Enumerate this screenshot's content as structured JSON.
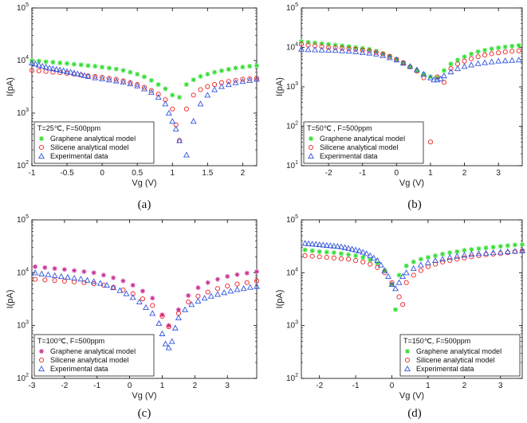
{
  "chart_data": [
    {
      "type": "scatter",
      "panel": "(a)",
      "ylog": true,
      "xlim": [
        -1,
        2.2
      ],
      "ylim": [
        100,
        100000
      ],
      "xticks": [
        -1,
        -0.5,
        0,
        0.5,
        1,
        1.5,
        2
      ],
      "xtick_labels": [
        "-1",
        "-0.5",
        "0",
        "0.5",
        "1",
        "1.5",
        "2"
      ],
      "yticks": [
        100,
        1000,
        10000,
        100000
      ],
      "xlabel": "Vg (V)",
      "ylabel": "I(pA)",
      "legend_title": "T=25℃, F=500ppm",
      "legend_position": "bottom-left",
      "series": [
        {
          "name": "Graphene analytical model",
          "marker": "star",
          "color": "#33dd33",
          "x": [
            -1.0,
            -0.9,
            -0.8,
            -0.7,
            -0.6,
            -0.5,
            -0.4,
            -0.3,
            -0.2,
            -0.1,
            0.0,
            0.1,
            0.2,
            0.3,
            0.4,
            0.5,
            0.6,
            0.7,
            0.8,
            0.9,
            1.0,
            1.1,
            1.2,
            1.3,
            1.4,
            1.5,
            1.6,
            1.7,
            1.8,
            1.9,
            2.0,
            2.1,
            2.2
          ],
          "y": [
            10000,
            9800,
            9500,
            9300,
            9000,
            8800,
            8500,
            8300,
            8000,
            7800,
            7500,
            7200,
            6900,
            6500,
            6000,
            5500,
            4900,
            4200,
            3500,
            2900,
            2200,
            2000,
            3500,
            4300,
            5000,
            5500,
            6000,
            6400,
            6800,
            7200,
            7500,
            7800,
            8000
          ]
        },
        {
          "name": "Silicene analytical model",
          "marker": "circle",
          "color": "#ee2222",
          "x": [
            -1.0,
            -0.9,
            -0.8,
            -0.7,
            -0.6,
            -0.5,
            -0.4,
            -0.3,
            -0.2,
            -0.1,
            0.0,
            0.1,
            0.2,
            0.3,
            0.4,
            0.5,
            0.6,
            0.7,
            0.8,
            0.9,
            1.0,
            1.05,
            1.1,
            1.2,
            1.3,
            1.4,
            1.5,
            1.6,
            1.7,
            1.8,
            1.9,
            2.0,
            2.1,
            2.2
          ],
          "y": [
            6500,
            6400,
            6200,
            6000,
            5900,
            5700,
            5500,
            5300,
            5100,
            5000,
            4800,
            4600,
            4400,
            4100,
            3800,
            3500,
            3100,
            2700,
            2300,
            1800,
            1200,
            600,
            300,
            1200,
            2200,
            2800,
            3200,
            3500,
            3800,
            4000,
            4200,
            4400,
            4500,
            4600
          ]
        },
        {
          "name": "Experimental data",
          "marker": "triangle",
          "color": "#3355dd",
          "x": [
            -1.0,
            -0.95,
            -0.9,
            -0.85,
            -0.8,
            -0.75,
            -0.7,
            -0.65,
            -0.6,
            -0.55,
            -0.5,
            -0.45,
            -0.4,
            -0.35,
            -0.3,
            -0.25,
            -0.2,
            -0.1,
            0.0,
            0.1,
            0.2,
            0.3,
            0.4,
            0.5,
            0.6,
            0.7,
            0.8,
            0.9,
            0.95,
            1.0,
            1.05,
            1.1,
            1.2,
            1.3,
            1.4,
            1.5,
            1.6,
            1.7,
            1.8,
            1.9,
            2.0,
            2.1,
            2.2
          ],
          "y": [
            9000,
            8600,
            8200,
            7800,
            7500,
            7200,
            7000,
            6800,
            6600,
            6400,
            6200,
            6000,
            5800,
            5600,
            5400,
            5200,
            5000,
            4700,
            4500,
            4300,
            4100,
            3900,
            3600,
            3300,
            2900,
            2500,
            2000,
            1500,
            1000,
            700,
            500,
            300,
            160,
            700,
            1500,
            2200,
            2800,
            3200,
            3500,
            3800,
            4000,
            4200,
            4400
          ]
        }
      ]
    },
    {
      "type": "scatter",
      "panel": "(b)",
      "ylog": true,
      "xlim": [
        -2.8,
        3.7
      ],
      "ylim": [
        10,
        100000
      ],
      "xticks": [
        -2,
        -1,
        0,
        1,
        2,
        3
      ],
      "xtick_labels": [
        "-2",
        "-1",
        "0",
        "1",
        "2",
        "3"
      ],
      "yticks": [
        10,
        100,
        1000,
        10000,
        100000
      ],
      "xlabel": "Vg (V)",
      "ylabel": "I(pA)",
      "legend_title": "T=50℃ , F=500ppm",
      "legend_position": "bottom-left",
      "series": [
        {
          "name": "Graphene analytical model",
          "marker": "star",
          "color": "#33dd33",
          "x": [
            -2.8,
            -2.6,
            -2.4,
            -2.2,
            -2.0,
            -1.8,
            -1.6,
            -1.4,
            -1.2,
            -1.0,
            -0.8,
            -0.6,
            -0.4,
            -0.2,
            0.0,
            0.2,
            0.4,
            0.6,
            0.8,
            1.0,
            1.2,
            1.4,
            1.6,
            1.8,
            2.0,
            2.2,
            2.4,
            2.6,
            2.8,
            3.0,
            3.2,
            3.4,
            3.6
          ],
          "y": [
            14000,
            13500,
            13000,
            12500,
            12000,
            11500,
            11000,
            10500,
            10000,
            9500,
            9000,
            8000,
            7000,
            6000,
            5000,
            4000,
            3200,
            2600,
            2100,
            1800,
            1700,
            2600,
            3800,
            4800,
            5800,
            6800,
            7800,
            8500,
            9200,
            9800,
            10300,
            10800,
            11200
          ]
        },
        {
          "name": "Silicene analytical model",
          "marker": "circle",
          "color": "#ee2222",
          "x": [
            -2.8,
            -2.6,
            -2.4,
            -2.2,
            -2.0,
            -1.8,
            -1.6,
            -1.4,
            -1.2,
            -1.0,
            -0.8,
            -0.6,
            -0.4,
            -0.2,
            0.0,
            0.2,
            0.4,
            0.6,
            0.8,
            1.0,
            1.2,
            1.4,
            1.6,
            1.8,
            2.0,
            2.2,
            2.4,
            2.6,
            2.8,
            3.0,
            3.2,
            3.4,
            3.6
          ],
          "y": [
            12000,
            11500,
            11000,
            10500,
            10000,
            9800,
            9500,
            9200,
            9000,
            8600,
            8200,
            7500,
            6800,
            5900,
            5000,
            4100,
            3200,
            2500,
            1700,
            40,
            1800,
            1300,
            2900,
            3800,
            4500,
            5200,
            5800,
            6400,
            6900,
            7300,
            7700,
            8000,
            8200
          ]
        },
        {
          "name": "Experimental data",
          "marker": "triangle",
          "color": "#3355dd",
          "x": [
            -2.8,
            -2.6,
            -2.4,
            -2.2,
            -2.0,
            -1.8,
            -1.6,
            -1.4,
            -1.2,
            -1.0,
            -0.8,
            -0.6,
            -0.4,
            -0.2,
            0.0,
            0.2,
            0.4,
            0.6,
            0.8,
            1.0,
            1.1,
            1.2,
            1.3,
            1.4,
            1.6,
            1.8,
            2.0,
            2.2,
            2.4,
            2.6,
            2.8,
            3.0,
            3.2,
            3.4,
            3.6
          ],
          "y": [
            9000,
            8800,
            8700,
            8600,
            8500,
            8400,
            8200,
            8000,
            7800,
            7500,
            7200,
            6800,
            6200,
            5500,
            4800,
            4000,
            3300,
            2700,
            2100,
            1700,
            1500,
            1500,
            1600,
            1900,
            2400,
            2900,
            3300,
            3600,
            3900,
            4100,
            4300,
            4500,
            4600,
            4700,
            4800
          ]
        }
      ]
    },
    {
      "type": "scatter",
      "panel": "(c)",
      "ylog": true,
      "xlim": [
        -3,
        3.9
      ],
      "ylim": [
        100,
        100000
      ],
      "xticks": [
        -3,
        -2,
        -1,
        0,
        1,
        2,
        3
      ],
      "xtick_labels": [
        "-3",
        "-2",
        "-1",
        "0",
        "1",
        "2",
        "3"
      ],
      "yticks": [
        100,
        1000,
        10000,
        100000
      ],
      "xlabel": "Vg (V)",
      "ylabel": "I(pA)",
      "legend_title": "T=100℃, F=500ppm",
      "legend_position": "bottom-left",
      "series": [
        {
          "name": "Graphene analytical model",
          "marker": "plus",
          "color": "#cc3399",
          "x": [
            -2.9,
            -2.6,
            -2.3,
            -2.0,
            -1.7,
            -1.4,
            -1.1,
            -0.8,
            -0.5,
            -0.2,
            0.1,
            0.4,
            0.7,
            1.0,
            1.2,
            1.5,
            1.8,
            2.1,
            2.4,
            2.7,
            3.0,
            3.3,
            3.6,
            3.9
          ],
          "y": [
            13000,
            12500,
            12000,
            11500,
            11000,
            10500,
            10000,
            9000,
            8000,
            7000,
            5800,
            4500,
            3300,
            1600,
            1000,
            2000,
            3700,
            5200,
            6500,
            7500,
            8500,
            9200,
            9800,
            10500
          ]
        },
        {
          "name": "Silicene analytical model",
          "marker": "circle",
          "color": "#ee2222",
          "x": [
            -2.9,
            -2.6,
            -2.3,
            -2.0,
            -1.7,
            -1.4,
            -1.1,
            -0.8,
            -0.5,
            -0.2,
            0.1,
            0.4,
            0.7,
            1.0,
            1.2,
            1.5,
            1.8,
            2.1,
            2.4,
            2.7,
            3.0,
            3.3,
            3.6,
            3.9
          ],
          "y": [
            7500,
            7300,
            7100,
            6900,
            6700,
            6500,
            6200,
            5800,
            5300,
            4700,
            4000,
            3200,
            2400,
            1500,
            950,
            1700,
            2800,
            3600,
            4300,
            5000,
            5600,
            6100,
            6500,
            7000
          ]
        },
        {
          "name": "Experimental data",
          "marker": "triangle",
          "color": "#3355dd",
          "x": [
            -2.9,
            -2.7,
            -2.5,
            -2.3,
            -2.1,
            -1.9,
            -1.7,
            -1.5,
            -1.3,
            -1.1,
            -0.9,
            -0.7,
            -0.5,
            -0.3,
            -0.1,
            0.1,
            0.3,
            0.5,
            0.7,
            0.9,
            1.0,
            1.1,
            1.2,
            1.3,
            1.4,
            1.5,
            1.7,
            1.9,
            2.1,
            2.3,
            2.5,
            2.7,
            2.9,
            3.1,
            3.3,
            3.5,
            3.7,
            3.9
          ],
          "y": [
            10000,
            9500,
            9200,
            8800,
            8500,
            8200,
            7900,
            7600,
            7200,
            6800,
            6300,
            5800,
            5200,
            4600,
            4000,
            3400,
            2800,
            2200,
            1700,
            1100,
            700,
            450,
            380,
            500,
            900,
            1400,
            2000,
            2500,
            2900,
            3300,
            3600,
            3900,
            4200,
            4500,
            4800,
            5000,
            5300,
            5500
          ]
        }
      ]
    },
    {
      "type": "scatter",
      "panel": "(d)",
      "ylog": true,
      "xlim": [
        -2.5,
        3.6
      ],
      "ylim": [
        100,
        100000
      ],
      "xticks": [
        -2,
        -1,
        0,
        1,
        2,
        3
      ],
      "xtick_labels": [
        "-2",
        "-1",
        "0",
        "1",
        "2",
        "3"
      ],
      "yticks": [
        100,
        1000,
        10000,
        100000
      ],
      "xlabel": "Vg (V)",
      "ylabel": "I(pA)",
      "legend_title": "T=150℃, F=500ppm",
      "legend_position": "bottom-right",
      "series": [
        {
          "name": "Graphene analytical model",
          "marker": "star",
          "color": "#33dd33",
          "x": [
            -2.4,
            -2.2,
            -2.0,
            -1.8,
            -1.6,
            -1.4,
            -1.2,
            -1.0,
            -0.8,
            -0.6,
            -0.4,
            -0.2,
            0.0,
            0.1,
            0.2,
            0.4,
            0.6,
            0.8,
            1.0,
            1.2,
            1.4,
            1.6,
            1.8,
            2.0,
            2.2,
            2.4,
            2.6,
            2.8,
            3.0,
            3.2,
            3.4,
            3.6
          ],
          "y": [
            27000,
            26000,
            25000,
            24500,
            24000,
            23000,
            22000,
            21000,
            19500,
            17500,
            15000,
            11000,
            6000,
            2000,
            9000,
            13500,
            16000,
            18000,
            19500,
            21000,
            22500,
            24000,
            25000,
            26500,
            27500,
            28500,
            29500,
            30500,
            31500,
            32500,
            33500,
            34000
          ]
        },
        {
          "name": "Silicene analytical model",
          "marker": "circle",
          "color": "#ee2222",
          "x": [
            -2.4,
            -2.2,
            -2.0,
            -1.8,
            -1.6,
            -1.4,
            -1.2,
            -1.0,
            -0.8,
            -0.6,
            -0.4,
            -0.2,
            0.0,
            0.2,
            0.3,
            0.4,
            0.6,
            0.8,
            1.0,
            1.2,
            1.4,
            1.6,
            1.8,
            2.0,
            2.2,
            2.4,
            2.6,
            2.8,
            3.0,
            3.2,
            3.4,
            3.6
          ],
          "y": [
            21000,
            20500,
            20000,
            19500,
            19000,
            18500,
            18000,
            17000,
            16000,
            14500,
            12500,
            10000,
            6500,
            3500,
            2500,
            6500,
            9000,
            11000,
            13000,
            14500,
            16000,
            17000,
            18000,
            19000,
            20000,
            21000,
            22000,
            22500,
            23000,
            24000,
            25000,
            26000
          ]
        },
        {
          "name": "Experimental data",
          "marker": "triangle",
          "color": "#3355dd",
          "x": [
            -2.4,
            -2.3,
            -2.2,
            -2.1,
            -2.0,
            -1.9,
            -1.8,
            -1.7,
            -1.6,
            -1.5,
            -1.4,
            -1.3,
            -1.2,
            -1.1,
            -1.0,
            -0.9,
            -0.8,
            -0.7,
            -0.6,
            -0.5,
            -0.4,
            -0.3,
            -0.2,
            -0.1,
            0.0,
            0.1,
            0.2,
            0.3,
            0.4,
            0.6,
            0.8,
            1.0,
            1.2,
            1.4,
            1.6,
            1.8,
            2.0,
            2.2,
            2.4,
            2.6,
            2.8,
            3.0,
            3.2,
            3.4,
            3.6
          ],
          "y": [
            36000,
            35500,
            35000,
            34500,
            34000,
            33500,
            33000,
            32500,
            32000,
            31500,
            31000,
            30000,
            29000,
            28000,
            27000,
            26000,
            24500,
            23000,
            21000,
            19000,
            17000,
            14000,
            11000,
            8500,
            6000,
            5000,
            6500,
            8500,
            10000,
            12000,
            14000,
            15500,
            17000,
            18000,
            19500,
            20500,
            21500,
            22500,
            23000,
            23500,
            24000,
            24500,
            25000,
            25500,
            26000
          ]
        }
      ]
    }
  ],
  "captions": [
    "(a)",
    "(b)",
    "(c)",
    "(d)"
  ]
}
